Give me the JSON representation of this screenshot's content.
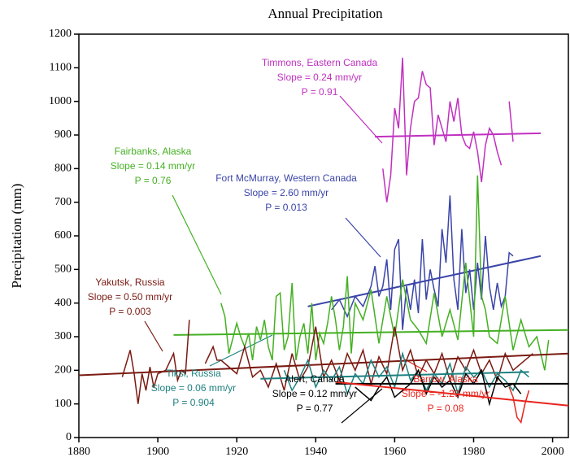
{
  "chart_data": {
    "type": "line",
    "title": "Annual Precipitation",
    "y_label": "Precipitation (mm)",
    "xlim": [
      1880,
      2004
    ],
    "xticks": [
      1880,
      1900,
      1920,
      1940,
      1960,
      1980,
      2000
    ],
    "ylim": [
      0,
      1200
    ],
    "yticks": [
      0,
      100,
      200,
      300,
      400,
      500,
      600,
      700,
      800,
      900,
      1000,
      1100,
      1200
    ],
    "series": [
      {
        "name": "Timmons, Eastern Canada",
        "slope": "Slope = 0.24 mm/yr",
        "p": "P = 0.91",
        "color": "#c030c0",
        "x": [
          1957,
          1958,
          1959,
          1960,
          1961,
          1962,
          1963,
          1964,
          1965,
          1966,
          1967,
          1968,
          1969,
          1970,
          1971,
          1972,
          1973,
          1974,
          1975,
          1976,
          1977,
          1978,
          1979,
          1980,
          1981,
          1982,
          1983,
          1984,
          1985,
          1986,
          1987,
          1988,
          1989,
          1990
        ],
        "values": [
          800,
          700,
          780,
          980,
          920,
          1130,
          780,
          920,
          1000,
          1010,
          1090,
          1050,
          1040,
          870,
          960,
          920,
          880,
          1000,
          940,
          1010,
          900,
          870,
          860,
          910,
          850,
          760,
          870,
          920,
          900,
          850,
          810,
          null,
          1000,
          880
        ],
        "trend_x": [
          1955,
          1997
        ],
        "trend_values": [
          895,
          905
        ]
      },
      {
        "name": "Fort McMurray, Western Canada",
        "slope": "Slope = 2.60 mm/yr",
        "p": "P = 0.013",
        "color": "#3a44a8",
        "x": [
          1944,
          1946,
          1948,
          1950,
          1952,
          1954,
          1955,
          1956,
          1957,
          1958,
          1959,
          1960,
          1961,
          1962,
          1963,
          1964,
          1965,
          1966,
          1967,
          1968,
          1969,
          1970,
          1971,
          1972,
          1973,
          1974,
          1975,
          1976,
          1977,
          1978,
          1979,
          1980,
          1981,
          1982,
          1983,
          1984,
          1985,
          1986,
          1987,
          1988,
          1989,
          1990
        ],
        "values": [
          380,
          410,
          360,
          420,
          390,
          450,
          510,
          420,
          450,
          530,
          380,
          560,
          590,
          320,
          450,
          380,
          470,
          370,
          590,
          410,
          500,
          440,
          390,
          620,
          520,
          720,
          470,
          380,
          620,
          430,
          500,
          380,
          520,
          410,
          600,
          450,
          380,
          460,
          390,
          420,
          550,
          540
        ],
        "trend_x": [
          1938,
          1997
        ],
        "trend_values": [
          390,
          540
        ]
      },
      {
        "name": "Fairbanks, Alaska",
        "slope": "Slope = 0.14 mm/yr",
        "p": "P = 0.76",
        "color": "#44b022",
        "x": [
          1916,
          1917,
          1918,
          1920,
          1921,
          1922,
          1923,
          1924,
          1925,
          1926,
          1927,
          1928,
          1929,
          1930,
          1931,
          1932,
          1933,
          1934,
          1935,
          1936,
          1937,
          1938,
          1939,
          1940,
          1941,
          1942,
          1943,
          1944,
          1945,
          1946,
          1947,
          1948,
          1949,
          1950,
          1952,
          1954,
          1956,
          1958,
          1960,
          1962,
          1964,
          1966,
          1968,
          1970,
          1972,
          1974,
          1976,
          1978,
          1980,
          1981,
          1982,
          1983,
          1984,
          1986,
          1988,
          1990,
          1992,
          1994,
          1996,
          1998,
          1999
        ],
        "values": [
          400,
          360,
          250,
          340,
          300,
          270,
          310,
          230,
          330,
          290,
          350,
          270,
          230,
          420,
          430,
          260,
          300,
          460,
          230,
          300,
          340,
          250,
          400,
          230,
          310,
          280,
          340,
          420,
          350,
          260,
          330,
          480,
          250,
          400,
          350,
          440,
          280,
          420,
          300,
          470,
          350,
          320,
          280,
          430,
          300,
          380,
          290,
          520,
          300,
          780,
          420,
          380,
          300,
          280,
          420,
          260,
          350,
          270,
          300,
          200,
          290
        ],
        "trend_x": [
          1904,
          2004
        ],
        "trend_values": [
          305,
          320
        ]
      },
      {
        "name": "Yakutsk, Russia",
        "slope": "Slope = 0.50 mm/yr",
        "p": "P = 0.003",
        "color": "#7a1a12",
        "x": [
          1891,
          1893,
          1894,
          1895,
          1896,
          1897,
          1898,
          1899,
          1900,
          1902,
          1904,
          1905,
          1906,
          1907,
          1908,
          1909,
          1912,
          1914,
          1915,
          1916,
          1920,
          1922,
          1924,
          1926,
          1928,
          1930,
          1932,
          1934,
          1936,
          1938,
          1940,
          1942,
          1944,
          1946,
          1948,
          1950,
          1952,
          1954,
          1956,
          1958,
          1960,
          1962,
          1964,
          1966,
          1968,
          1970,
          1972,
          1974,
          1976,
          1978,
          1980,
          1982,
          1984,
          1986,
          1988,
          1990,
          1992,
          1994,
          1995
        ],
        "values": [
          180,
          260,
          190,
          100,
          190,
          140,
          210,
          150,
          190,
          200,
          250,
          170,
          200,
          190,
          350,
          null,
          220,
          270,
          230,
          230,
          190,
          270,
          180,
          200,
          150,
          220,
          140,
          250,
          170,
          210,
          330,
          180,
          230,
          170,
          250,
          200,
          260,
          160,
          240,
          190,
          330,
          200,
          260,
          180,
          230,
          190,
          250,
          170,
          240,
          200,
          260,
          190,
          230,
          170,
          250,
          200,
          220,
          240,
          250
        ],
        "trend_x": [
          1880,
          2004
        ],
        "trend_values": [
          185,
          250
        ]
      },
      {
        "name": "Tiksi, Russia",
        "slope": "Slope = 0.06 mm/yr",
        "p": "P = 0.904",
        "color": "#1f8080",
        "x": [
          1932,
          1934,
          1936,
          1938,
          1940,
          1942,
          1944,
          1946,
          1948,
          1950,
          1952,
          1954,
          1956,
          1958,
          1960,
          1962,
          1964,
          1966,
          1968,
          1970,
          1972,
          1974,
          1976,
          1978,
          1980,
          1982,
          1984,
          1986,
          1988,
          1990,
          1992,
          1994
        ],
        "values": [
          200,
          140,
          180,
          230,
          150,
          200,
          170,
          210,
          130,
          190,
          160,
          230,
          180,
          210,
          150,
          250,
          170,
          200,
          140,
          190,
          160,
          220,
          130,
          210,
          180,
          200,
          150,
          190,
          170,
          140,
          200,
          180
        ],
        "trend_x": [
          1926,
          1994
        ],
        "trend_values": [
          175,
          195
        ]
      },
      {
        "name": "Alert, Canada",
        "slope": "Slope = 0.12 mm/yr",
        "p": "P = 0.77",
        "color": "#000000",
        "x": [
          1950,
          1952,
          1954,
          1956,
          1958,
          1960,
          1962,
          1964,
          1966,
          1968,
          1970,
          1972,
          1974,
          1976,
          1978,
          1980,
          1982,
          1984,
          1986,
          1988,
          1990,
          1992
        ],
        "values": [
          150,
          130,
          110,
          150,
          180,
          120,
          140,
          160,
          200,
          130,
          180,
          150,
          170,
          120,
          190,
          160,
          200,
          100,
          180,
          150,
          160,
          130
        ],
        "trend_x": [
          1945,
          2004
        ],
        "trend_values": [
          160,
          160
        ]
      },
      {
        "name": "Barrow, Alaska",
        "slope": "Slope = -1.29 mm/yr",
        "p": "P = 0.08",
        "color": "#e8241c",
        "x": [
          1989,
          1990,
          1991,
          1992,
          1993,
          1994
        ],
        "values": [
          150,
          120,
          60,
          45,
          100,
          140
        ],
        "trend_x": [
          1945,
          2004
        ],
        "trend_values": [
          165,
          95
        ]
      }
    ]
  }
}
